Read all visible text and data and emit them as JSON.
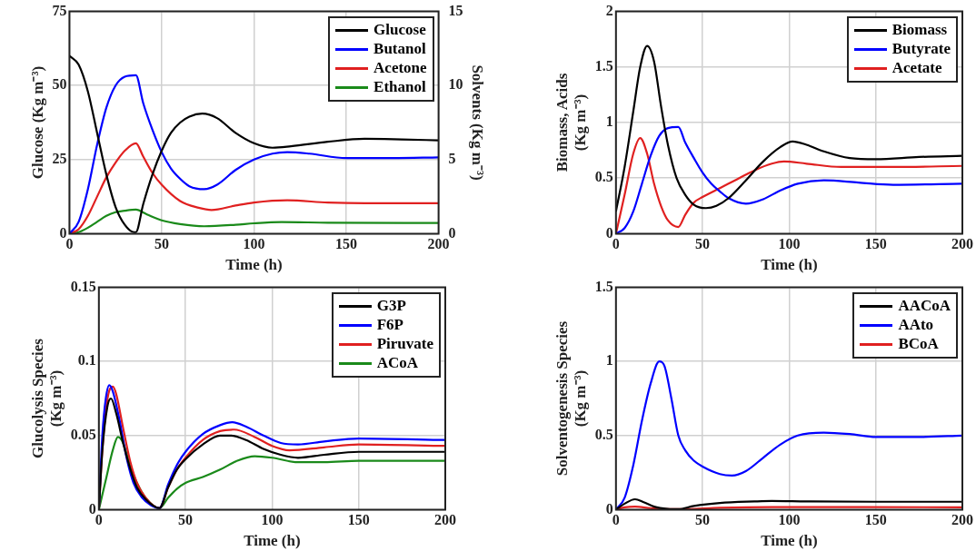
{
  "chart_data": [
    {
      "type": "line",
      "xlabel": "Time (h)",
      "ylabel": "Glucose (Kg m⁻³)",
      "y2label": "Solvents (Kg m⁻³)",
      "xlim": [
        0,
        200
      ],
      "xticks": [
        0,
        50,
        100,
        150,
        200
      ],
      "ylim": [
        0,
        75
      ],
      "yticks": [
        0,
        25,
        50,
        75
      ],
      "y2lim": [
        0,
        15
      ],
      "y2ticks": [
        0,
        5,
        10,
        15
      ],
      "grid": true,
      "legend": "top right",
      "marker": "none",
      "line_style": "solid",
      "series": [
        {
          "name": "Glucose",
          "color": "#000000",
          "x": [
            0,
            5,
            10,
            15,
            20,
            25,
            30,
            35,
            36,
            40,
            45,
            50,
            55,
            60,
            65,
            72,
            80,
            90,
            100,
            110,
            120,
            140,
            160,
            180,
            200
          ],
          "values": [
            60,
            57,
            48,
            34,
            20,
            9,
            3,
            0.5,
            0.5,
            10,
            20,
            28,
            34,
            37.5,
            39.5,
            40.5,
            39,
            34,
            30.5,
            29,
            29.5,
            31,
            32,
            31.8,
            31.5
          ]
        },
        {
          "name": "Butanol",
          "color": "#0000ff",
          "axis": "y2",
          "x": [
            0,
            5,
            10,
            15,
            20,
            25,
            30,
            36,
            40,
            45,
            50,
            55,
            60,
            65,
            73,
            80,
            90,
            100,
            110,
            118,
            130,
            150,
            175,
            200
          ],
          "values": [
            0,
            0.8,
            3,
            6,
            8.5,
            10,
            10.6,
            10.7,
            8.8,
            7,
            5.5,
            4.4,
            3.7,
            3.2,
            3.0,
            3.3,
            4.3,
            5.0,
            5.4,
            5.5,
            5.4,
            5.1,
            5.1,
            5.15
          ]
        },
        {
          "name": "Acetone",
          "color": "#e02020",
          "axis": "y2",
          "x": [
            0,
            5,
            10,
            15,
            20,
            25,
            30,
            36,
            40,
            45,
            50,
            60,
            70,
            77,
            90,
            100,
            118,
            140,
            160,
            200
          ],
          "values": [
            0,
            0.3,
            1.2,
            2.5,
            3.8,
            4.8,
            5.6,
            6.1,
            5.2,
            4.1,
            3.3,
            2.2,
            1.75,
            1.6,
            1.9,
            2.1,
            2.25,
            2.1,
            2.05,
            2.05
          ]
        },
        {
          "name": "Ethanol",
          "color": "#1a8a1a",
          "axis": "y2",
          "x": [
            0,
            5,
            10,
            15,
            20,
            25,
            30,
            36,
            42,
            50,
            60,
            73,
            90,
            100,
            115,
            140,
            200
          ],
          "values": [
            0,
            0.1,
            0.4,
            0.8,
            1.2,
            1.45,
            1.55,
            1.62,
            1.3,
            0.9,
            0.65,
            0.5,
            0.6,
            0.7,
            0.78,
            0.74,
            0.72
          ]
        }
      ]
    },
    {
      "type": "line",
      "xlabel": "Time (h)",
      "ylabel": "Biomass, Acids (Kg m⁻³)",
      "xlim": [
        0,
        200
      ],
      "xticks": [
        0,
        50,
        100,
        150,
        200
      ],
      "ylim": [
        0,
        2
      ],
      "yticks": [
        0,
        0.5,
        1,
        1.5,
        2
      ],
      "grid": true,
      "legend": "top right",
      "marker": "none",
      "line_style": "solid",
      "series": [
        {
          "name": "Biomass",
          "color": "#000000",
          "x": [
            0,
            5,
            10,
            14,
            18,
            22,
            26,
            30,
            35,
            40,
            45,
            52,
            58,
            65,
            75,
            85,
            95,
            102,
            110,
            120,
            135,
            150,
            175,
            200
          ],
          "values": [
            0.2,
            0.6,
            1.1,
            1.5,
            1.69,
            1.55,
            1.15,
            0.8,
            0.5,
            0.35,
            0.26,
            0.23,
            0.25,
            0.32,
            0.48,
            0.65,
            0.78,
            0.83,
            0.8,
            0.74,
            0.68,
            0.67,
            0.69,
            0.7
          ]
        },
        {
          "name": "Butyrate",
          "color": "#0000ff",
          "x": [
            0,
            5,
            10,
            15,
            20,
            25,
            30,
            36,
            40,
            45,
            50,
            55,
            60,
            65,
            75,
            85,
            95,
            105,
            120,
            140,
            160,
            200
          ],
          "values": [
            0,
            0.05,
            0.2,
            0.45,
            0.7,
            0.88,
            0.95,
            0.96,
            0.82,
            0.68,
            0.55,
            0.45,
            0.38,
            0.32,
            0.27,
            0.31,
            0.39,
            0.45,
            0.48,
            0.46,
            0.44,
            0.45
          ]
        },
        {
          "name": "Acetate",
          "color": "#e02020",
          "x": [
            0,
            5,
            10,
            14,
            18,
            22,
            26,
            30,
            36,
            40,
            45,
            50,
            60,
            70,
            80,
            90,
            97,
            110,
            130,
            160,
            200
          ],
          "values": [
            0,
            0.35,
            0.72,
            0.86,
            0.72,
            0.45,
            0.25,
            0.12,
            0.06,
            0.17,
            0.28,
            0.33,
            0.41,
            0.49,
            0.57,
            0.63,
            0.65,
            0.63,
            0.6,
            0.6,
            0.61
          ]
        }
      ]
    },
    {
      "type": "line",
      "xlabel": "Time (h)",
      "ylabel": "Glucolysis Species (Kg m⁻³)",
      "xlim": [
        0,
        200
      ],
      "xticks": [
        0,
        50,
        100,
        150,
        200
      ],
      "ylim": [
        0,
        0.15
      ],
      "yticks": [
        0,
        0.05,
        0.1,
        0.15
      ],
      "grid": true,
      "legend": "top right",
      "marker": "none",
      "line_style": "solid",
      "series": [
        {
          "name": "G3P",
          "color": "#000000",
          "x": [
            0,
            2,
            5,
            7,
            10,
            14,
            18,
            22,
            27,
            35,
            40,
            45,
            50,
            60,
            70,
            76,
            85,
            95,
            105,
            115,
            130,
            150,
            200
          ],
          "values": [
            0,
            0.04,
            0.07,
            0.075,
            0.065,
            0.045,
            0.028,
            0.015,
            0.007,
            0.001,
            0.015,
            0.027,
            0.034,
            0.044,
            0.05,
            0.05,
            0.047,
            0.041,
            0.037,
            0.035,
            0.037,
            0.039,
            0.039
          ]
        },
        {
          "name": "F6P",
          "color": "#0000ff",
          "x": [
            0,
            2,
            4,
            6,
            8,
            12,
            16,
            20,
            25,
            30,
            35,
            40,
            45,
            50,
            60,
            70,
            77,
            85,
            95,
            105,
            115,
            130,
            150,
            200
          ],
          "values": [
            0,
            0.05,
            0.075,
            0.084,
            0.08,
            0.06,
            0.035,
            0.018,
            0.008,
            0.003,
            0.001,
            0.017,
            0.03,
            0.039,
            0.051,
            0.057,
            0.059,
            0.056,
            0.05,
            0.045,
            0.044,
            0.046,
            0.048,
            0.047
          ]
        },
        {
          "name": "Piruvate",
          "color": "#e02020",
          "x": [
            0,
            2,
            5,
            8,
            10,
            14,
            18,
            22,
            27,
            35,
            40,
            45,
            50,
            60,
            70,
            78,
            90,
            100,
            110,
            130,
            150,
            200
          ],
          "values": [
            0,
            0.04,
            0.075,
            0.083,
            0.078,
            0.055,
            0.033,
            0.018,
            0.008,
            0.001,
            0.015,
            0.027,
            0.035,
            0.047,
            0.053,
            0.054,
            0.049,
            0.043,
            0.04,
            0.042,
            0.044,
            0.043
          ]
        },
        {
          "name": "ACoA",
          "color": "#1a8a1a",
          "x": [
            0,
            4,
            8,
            11,
            14,
            18,
            22,
            27,
            35,
            40,
            45,
            50,
            60,
            70,
            80,
            90,
            100,
            115,
            130,
            150,
            200
          ],
          "values": [
            0,
            0.02,
            0.04,
            0.049,
            0.045,
            0.03,
            0.018,
            0.008,
            0.001,
            0.008,
            0.014,
            0.018,
            0.022,
            0.027,
            0.033,
            0.036,
            0.035,
            0.032,
            0.032,
            0.033,
            0.033
          ]
        }
      ]
    },
    {
      "type": "line",
      "xlabel": "Time (h)",
      "ylabel": "Solventogenesis Species (Kg m⁻³)",
      "xlim": [
        0,
        200
      ],
      "xticks": [
        0,
        50,
        100,
        150,
        200
      ],
      "ylim": [
        0,
        1.5
      ],
      "yticks": [
        0,
        0.5,
        1,
        1.5
      ],
      "grid": true,
      "legend": "top right",
      "marker": "none",
      "line_style": "solid",
      "series": [
        {
          "name": "AACoA",
          "color": "#000000",
          "x": [
            0,
            5,
            11,
            16,
            22,
            30,
            36,
            45,
            60,
            80,
            90,
            110,
            150,
            200
          ],
          "values": [
            0,
            0.04,
            0.07,
            0.05,
            0.02,
            0.005,
            0.003,
            0.025,
            0.045,
            0.055,
            0.058,
            0.055,
            0.053,
            0.053
          ]
        },
        {
          "name": "AAto",
          "color": "#0000ff",
          "x": [
            0,
            5,
            10,
            15,
            20,
            25,
            28,
            32,
            36,
            40,
            45,
            50,
            60,
            67,
            75,
            85,
            95,
            105,
            120,
            135,
            150,
            175,
            200
          ],
          "values": [
            0,
            0.08,
            0.3,
            0.6,
            0.85,
            1.0,
            0.97,
            0.75,
            0.5,
            0.4,
            0.33,
            0.29,
            0.24,
            0.23,
            0.26,
            0.35,
            0.44,
            0.5,
            0.52,
            0.51,
            0.49,
            0.49,
            0.5
          ]
        },
        {
          "name": "BCoA",
          "color": "#e02020",
          "x": [
            0,
            5,
            11,
            20,
            30,
            40,
            60,
            90,
            200
          ],
          "values": [
            0,
            0.015,
            0.02,
            0.01,
            0.003,
            0.003,
            0.012,
            0.017,
            0.016
          ]
        }
      ]
    }
  ]
}
